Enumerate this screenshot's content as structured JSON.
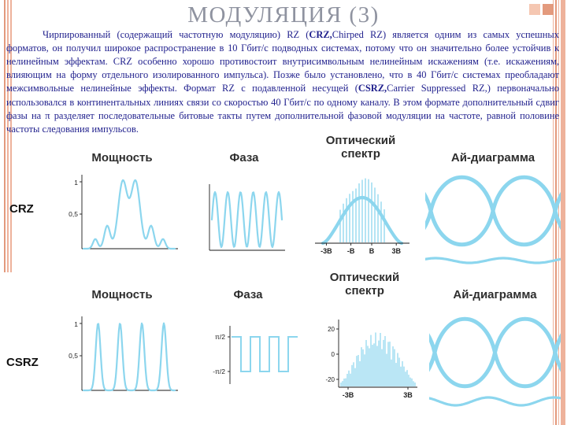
{
  "title": "МОДУЛЯЦИЯ (3)",
  "paragraph": {
    "segments": [
      {
        "text": "Чирпированный (содержащий частотную модуляцию) RZ (",
        "bold": false
      },
      {
        "text": "CRZ,",
        "bold": true
      },
      {
        "text": "Chirped RZ) является одним из самых успешных форматов, он получил широкое распространение в 10 Гбит/с подводных системах, потому что он значительно более устойчив к нелинейным эффектам. CRZ особенно хорошо противостоит внутрисимвольным нелинейным искажениям (т.е. искажениям, влияющим на форму отдельного изолированного импульса). Позже было установлено, что в 40 Гбит/с системах преобладают межсимвольные нелинейные эффекты. Формат RZ с подавленной несущей (",
        "bold": false
      },
      {
        "text": "CSRZ,",
        "bold": true
      },
      {
        "text": "Carrier Suppressed RZ,) первоначально использовался в континентальных линиях связи со скоростью 40 Гбит/с по одному каналу. В этом формате дополнительный сдвиг фазы на π разделяет последовательные битовые такты путем дополнительной фазовой модуляции на частоте, равной половине частоты следования импульсов.",
        "bold": false
      }
    ]
  },
  "figures": {
    "rows": [
      {
        "row_label": "CRZ",
        "plots": [
          {
            "id": "fig-crz-power",
            "header": "Мощность",
            "type": "rz_power",
            "y_ticks": [
              "1",
              "0,5"
            ]
          },
          {
            "id": "fig-crz-phase",
            "header": "Фаза",
            "type": "sine_phase"
          },
          {
            "id": "fig-crz-spectrum",
            "header": "Оптический спектр",
            "type": "comb_spectrum",
            "x_ticks": [
              "-3B",
              "-B",
              "B",
              "3B"
            ]
          },
          {
            "id": "fig-crz-eye",
            "header": "Ай-диаграмма",
            "type": "eye"
          }
        ]
      },
      {
        "row_label": "CSRZ",
        "plots": [
          {
            "id": "fig-csrz-power",
            "header": "Мощность",
            "type": "pulse_power",
            "y_ticks": [
              "1",
              "0,5"
            ]
          },
          {
            "id": "fig-csrz-phase",
            "header": "Фаза",
            "type": "square_phase",
            "y_ticks": [
              "π/2",
              "-π/2"
            ]
          },
          {
            "id": "fig-csrz-spectrum",
            "header": "Оптический спектр",
            "type": "noisy_spectrum",
            "y_ticks": [
              "20",
              "0",
              "-20"
            ],
            "x_ticks": [
              "-3B",
              "3B"
            ]
          },
          {
            "id": "fig-csrz-eye",
            "header": "Ай-диаграмма",
            "type": "eye2"
          }
        ]
      }
    ]
  },
  "colors": {
    "waveform": "#8cd6ee",
    "axis": "#1a1a1a",
    "tick_text": "#222222",
    "stripe": "#eeb29b",
    "stripe_dark": "#e39a7d",
    "body_text": "#22228e",
    "title_text": "#8f93a0",
    "header_text": "#2e2e2e"
  }
}
